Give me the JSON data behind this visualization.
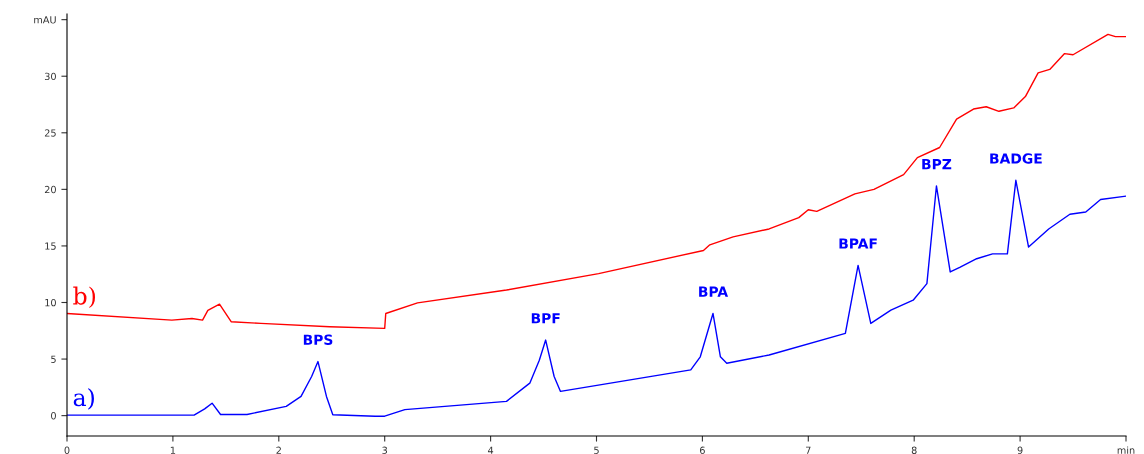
{
  "chart_data": {
    "type": "line",
    "xlim": [
      0,
      10
    ],
    "ylim": [
      -1.8,
      35.5
    ],
    "xticks": [
      0,
      1,
      2,
      3,
      4,
      5,
      6,
      7,
      8,
      9,
      {
        "value": 10,
        "label": "min"
      }
    ],
    "yticks": [
      0,
      5,
      10,
      15,
      20,
      25,
      30,
      {
        "value": 35,
        "label": "mAU"
      }
    ],
    "grid": false,
    "legend": false,
    "marker": "none",
    "line_style": "solid",
    "series": [
      {
        "name": "a)",
        "color": "#0000ff",
        "x": [
          0,
          1.2,
          1.3,
          1.37,
          1.45,
          1.7,
          2.07,
          2.21,
          2.31,
          2.37,
          2.45,
          2.51,
          2.91,
          3.0,
          3.19,
          4.15,
          4.37,
          4.46,
          4.52,
          4.6,
          4.66,
          5.89,
          5.98,
          6.1,
          6.17,
          6.23,
          6.63,
          7.35,
          7.47,
          7.59,
          7.78,
          7.99,
          8.12,
          8.21,
          8.34,
          8.43,
          8.59,
          8.74,
          8.88,
          8.96,
          9.08,
          9.27,
          9.47,
          9.62,
          9.76,
          10.0
        ],
        "values": [
          0.05,
          0.05,
          0.6,
          1.1,
          0.1,
          0.1,
          0.82,
          1.7,
          3.46,
          4.78,
          1.7,
          0.08,
          -0.05,
          -0.05,
          0.53,
          1.26,
          2.87,
          4.9,
          6.68,
          3.46,
          2.14,
          4.05,
          5.2,
          9.03,
          5.2,
          4.63,
          5.36,
          7.27,
          13.28,
          8.15,
          9.32,
          10.2,
          11.67,
          20.3,
          12.7,
          13.1,
          13.87,
          14.3,
          14.3,
          20.8,
          14.9,
          16.5,
          17.8,
          18.0,
          19.1,
          19.4
        ]
      },
      {
        "name": "b)",
        "color": "#ff0000",
        "x": [
          0,
          0.99,
          1.18,
          1.28,
          1.33,
          1.44,
          1.52,
          1.55,
          1.83,
          2.48,
          3.0,
          3.01,
          3.31,
          4.15,
          5.02,
          6.01,
          6.07,
          6.29,
          6.63,
          6.91,
          7.0,
          7.08,
          7.44,
          7.62,
          7.9,
          8.03,
          8.24,
          8.4,
          8.56,
          8.68,
          8.8,
          8.94,
          9.05,
          9.17,
          9.28,
          9.42,
          9.5,
          9.83,
          9.9,
          10.0
        ],
        "values": [
          9.03,
          8.44,
          8.59,
          8.44,
          9.3,
          9.85,
          8.73,
          8.3,
          8.15,
          7.86,
          7.71,
          9.03,
          9.97,
          11.1,
          12.55,
          14.6,
          15.1,
          15.8,
          16.5,
          17.5,
          18.2,
          18.05,
          19.6,
          20.0,
          21.3,
          22.8,
          23.7,
          26.2,
          27.1,
          27.3,
          26.9,
          27.2,
          28.2,
          30.3,
          30.6,
          32.0,
          31.9,
          33.7,
          33.5,
          33.5
        ]
      }
    ],
    "annotations": [
      {
        "text": "BPS",
        "x": 2.37,
        "y": 4.78
      },
      {
        "text": "BPF",
        "x": 4.52,
        "y": 6.68
      },
      {
        "text": "BPA",
        "x": 6.1,
        "y": 9.03
      },
      {
        "text": "BPAF",
        "x": 7.47,
        "y": 13.28
      },
      {
        "text": "BPZ",
        "x": 8.21,
        "y": 20.3
      },
      {
        "text": "BADGE",
        "x": 8.96,
        "y": 20.8
      }
    ]
  }
}
